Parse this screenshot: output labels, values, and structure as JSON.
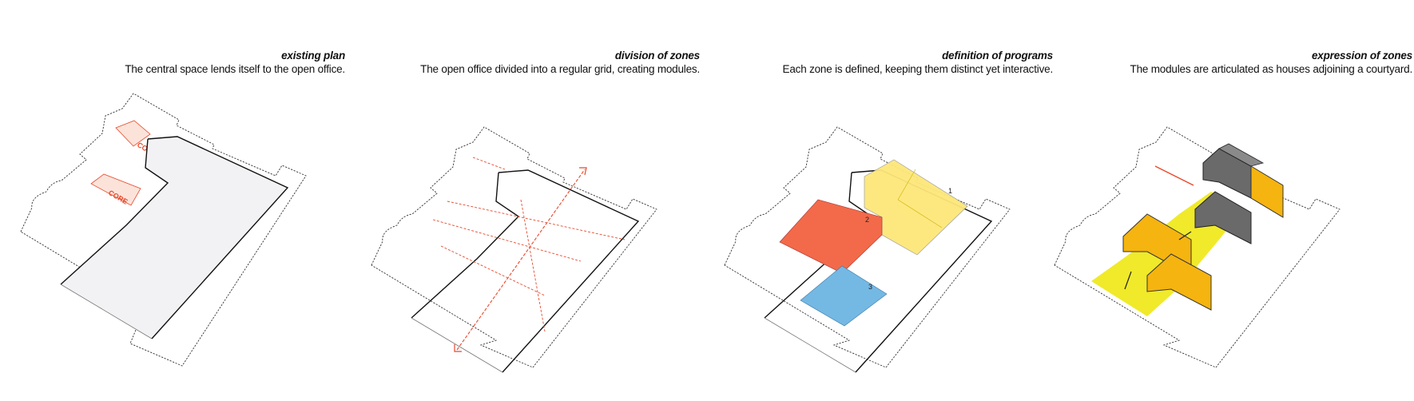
{
  "panels": [
    {
      "title": "existing plan",
      "description": "The central space lends itself to the open office.",
      "core_labels": [
        "CORE",
        "CORE"
      ]
    },
    {
      "title": "division of zones",
      "description": "The open office divided into a regular grid, creating modules."
    },
    {
      "title": "definition of programs",
      "description": "Each zone is defined, keeping them distinct yet interactive.",
      "zone_labels": [
        "1",
        "2",
        "3"
      ],
      "zone_colors": [
        "#fde77a",
        "#f26a4a",
        "#74b8e4"
      ]
    },
    {
      "title": "expression of zones",
      "description": "The modules are articulated as houses adjoining a courtyard.",
      "house_colors": [
        "#f5b40f",
        "#808080"
      ],
      "courtyard_color": "#f0ea2a"
    }
  ],
  "colors": {
    "accent_red": "#e8492c",
    "floor_grey": "#f2f2f4"
  }
}
